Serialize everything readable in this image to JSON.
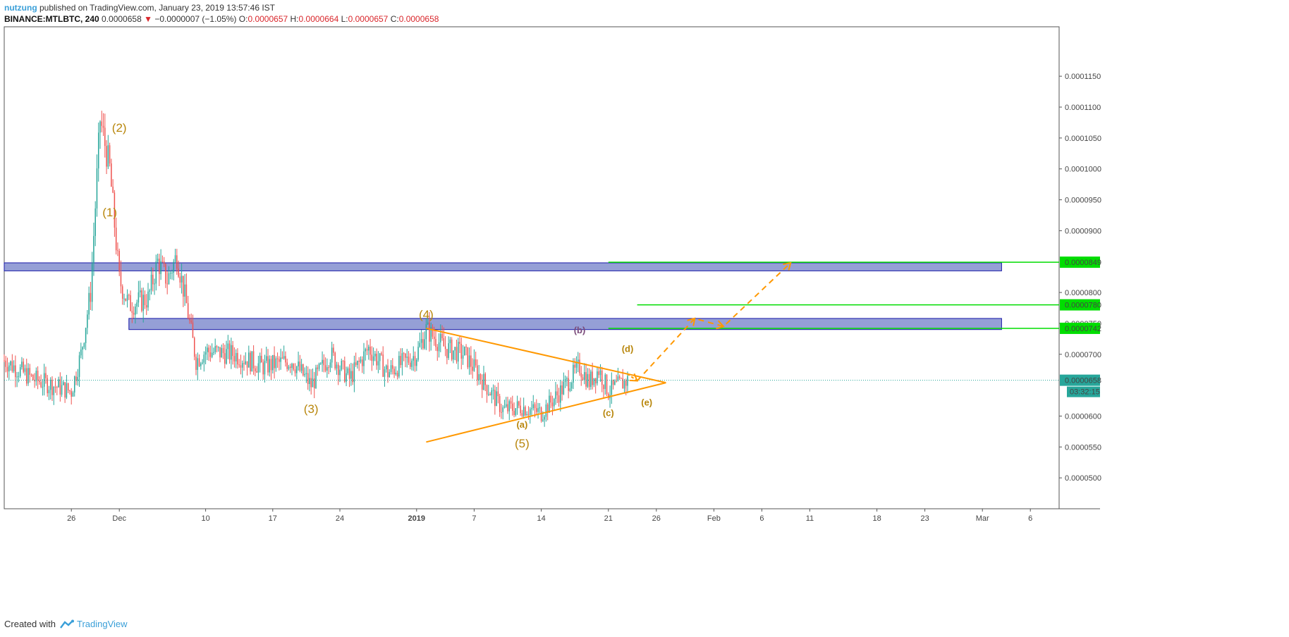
{
  "header": {
    "author": "nutzung",
    "published_text": " published on TradingView.com, January 23, 2019 13:57:46 IST",
    "symbol": "BINANCE:MTLBTC, 240",
    "price": "0.0000658",
    "change": "−0.0000007 (−1.05%)",
    "o_label": "O:",
    "o_value": "0.0000657",
    "h_label": "H:",
    "h_value": "0.0000664",
    "l_label": "L:",
    "l_value": "0.0000657",
    "c_label": "C:",
    "c_value": "0.0000658"
  },
  "footer": {
    "created_with": "Created with",
    "brand": "TradingView"
  },
  "colors": {
    "up": "#26a69a",
    "down": "#ef5350",
    "zone": "#5c6bc0",
    "level": "#00dd00",
    "wave": "#b8860b",
    "triangle": "#ff9800",
    "current_price": "#26a69a"
  },
  "chart_data": {
    "type": "candlestick",
    "y_axis": {
      "ylim": [
        4.5e-05,
        0.000123
      ],
      "ticks": [
        "0.0001150",
        "0.0001100",
        "0.0001050",
        "0.0001000",
        "0.0000950",
        "0.0000900",
        "0.0000800",
        "0.0000750",
        "0.0000700",
        "0.0000600",
        "0.0000550",
        "0.0000500"
      ]
    },
    "x_axis": {
      "date_range": [
        "2018-11-19",
        "2019-03-09"
      ],
      "ticks": [
        {
          "date": "2018-11-26",
          "label": "26"
        },
        {
          "date": "2018-12-01",
          "label": "Dec"
        },
        {
          "date": "2018-12-10",
          "label": "10"
        },
        {
          "date": "2018-12-17",
          "label": "17"
        },
        {
          "date": "2018-12-24",
          "label": "24"
        },
        {
          "date": "2019-01-01",
          "label": "2019"
        },
        {
          "date": "2019-01-07",
          "label": "7"
        },
        {
          "date": "2019-01-14",
          "label": "14"
        },
        {
          "date": "2019-01-21",
          "label": "21"
        },
        {
          "date": "2019-01-26",
          "label": "26"
        },
        {
          "date": "2019-02-01",
          "label": "Feb"
        },
        {
          "date": "2019-02-06",
          "label": "6"
        },
        {
          "date": "2019-02-11",
          "label": "11"
        },
        {
          "date": "2019-02-18",
          "label": "18"
        },
        {
          "date": "2019-02-23",
          "label": "23"
        },
        {
          "date": "2019-03-01",
          "label": "Mar"
        },
        {
          "date": "2019-03-06",
          "label": "6"
        }
      ]
    },
    "price_path": [
      [
        "2018-11-19",
        6.9e-05
      ],
      [
        "2018-11-22",
        6.6e-05
      ],
      [
        "2018-11-24",
        6.5e-05
      ],
      [
        "2018-11-26",
        6.4e-05
      ],
      [
        "2018-11-27",
        7e-05
      ],
      [
        "2018-11-28",
        8e-05
      ],
      [
        "2018-11-29",
        0.000108
      ],
      [
        "2018-11-30",
        0.0001
      ],
      [
        "2018-12-01",
        8.2e-05
      ],
      [
        "2018-12-02",
        7.8e-05
      ],
      [
        "2018-12-04",
        7.9e-05
      ],
      [
        "2018-12-05",
        8.5e-05
      ],
      [
        "2018-12-06",
        8.2e-05
      ],
      [
        "2018-12-07",
        8.6e-05
      ],
      [
        "2018-12-08",
        7.8e-05
      ],
      [
        "2018-12-09",
        6.9e-05
      ],
      [
        "2018-12-10",
        7.05e-05
      ],
      [
        "2018-12-13",
        7e-05
      ],
      [
        "2018-12-16",
        6.8e-05
      ],
      [
        "2018-12-19",
        6.9e-05
      ],
      [
        "2018-12-21",
        6.5e-05
      ],
      [
        "2018-12-23",
        7e-05
      ],
      [
        "2018-12-25",
        6.6e-05
      ],
      [
        "2018-12-27",
        7.1e-05
      ],
      [
        "2018-12-29",
        6.7e-05
      ],
      [
        "2019-01-01",
        7e-05
      ],
      [
        "2019-01-02",
        7.4e-05
      ],
      [
        "2019-01-04",
        7.1e-05
      ],
      [
        "2019-01-06",
        7e-05
      ],
      [
        "2019-01-08",
        6.55e-05
      ],
      [
        "2019-01-10",
        6.1e-05
      ],
      [
        "2019-01-12",
        6.15e-05
      ],
      [
        "2019-01-14",
        6.05e-05
      ],
      [
        "2019-01-16",
        6.4e-05
      ],
      [
        "2019-01-18",
        6.8e-05
      ],
      [
        "2019-01-19",
        6.55e-05
      ],
      [
        "2019-01-20",
        6.75e-05
      ],
      [
        "2019-01-21",
        6.4e-05
      ],
      [
        "2019-01-23",
        6.58e-05
      ]
    ],
    "current_price": {
      "value": "0.0000658",
      "countdown": "03:32:15"
    },
    "zones": [
      {
        "from": "2018-11-19",
        "to": "2019-03-03",
        "low": 8.35e-05,
        "high": 8.48e-05
      },
      {
        "from": "2018-12-02",
        "to": "2019-03-03",
        "low": 7.4e-05,
        "high": 7.58e-05
      }
    ],
    "levels": [
      {
        "value": 8.49e-05,
        "label": "0.0000849",
        "from": "2019-01-21"
      },
      {
        "value": 7.8e-05,
        "label": "0.0000780",
        "from": "2019-01-24"
      },
      {
        "value": 7.42e-05,
        "label": "0.0000742",
        "from": "2019-01-21"
      }
    ],
    "triangle": {
      "upper": [
        [
          "2019-01-02",
          7.42e-05
        ],
        [
          "2019-01-27",
          6.54e-05
        ]
      ],
      "lower": [
        [
          "2019-01-02",
          5.58e-05
        ],
        [
          "2019-01-27",
          6.54e-05
        ]
      ]
    },
    "projection": [
      [
        "2019-01-24",
        6.57e-05
      ],
      [
        "2019-01-30",
        7.58e-05
      ],
      [
        "2019-02-02",
        7.45e-05
      ],
      [
        "2019-02-09",
        8.48e-05
      ]
    ],
    "wave_labels": [
      {
        "text": "(1)",
        "date": "2018-11-30",
        "price": 9.23e-05,
        "style": "major"
      },
      {
        "text": "(2)",
        "date": "2018-12-01",
        "price": 0.000106,
        "style": "major"
      },
      {
        "text": "(3)",
        "date": "2018-12-21",
        "price": 6.05e-05,
        "style": "major"
      },
      {
        "text": "(4)",
        "date": "2019-01-02",
        "price": 7.58e-05,
        "style": "major"
      },
      {
        "text": "(5)",
        "date": "2019-01-12",
        "price": 5.49e-05,
        "style": "major"
      },
      {
        "text": "(a)",
        "date": "2019-01-12",
        "price": 5.81e-05,
        "style": "minor"
      },
      {
        "text": "(b)",
        "date": "2019-01-18",
        "price": 7.34e-05,
        "style": "minor-dark"
      },
      {
        "text": "(c)",
        "date": "2019-01-21",
        "price": 6e-05,
        "style": "minor"
      },
      {
        "text": "(d)",
        "date": "2019-01-23",
        "price": 7.04e-05,
        "style": "minor"
      },
      {
        "text": "(e)",
        "date": "2019-01-25",
        "price": 6.17e-05,
        "style": "minor"
      }
    ]
  }
}
